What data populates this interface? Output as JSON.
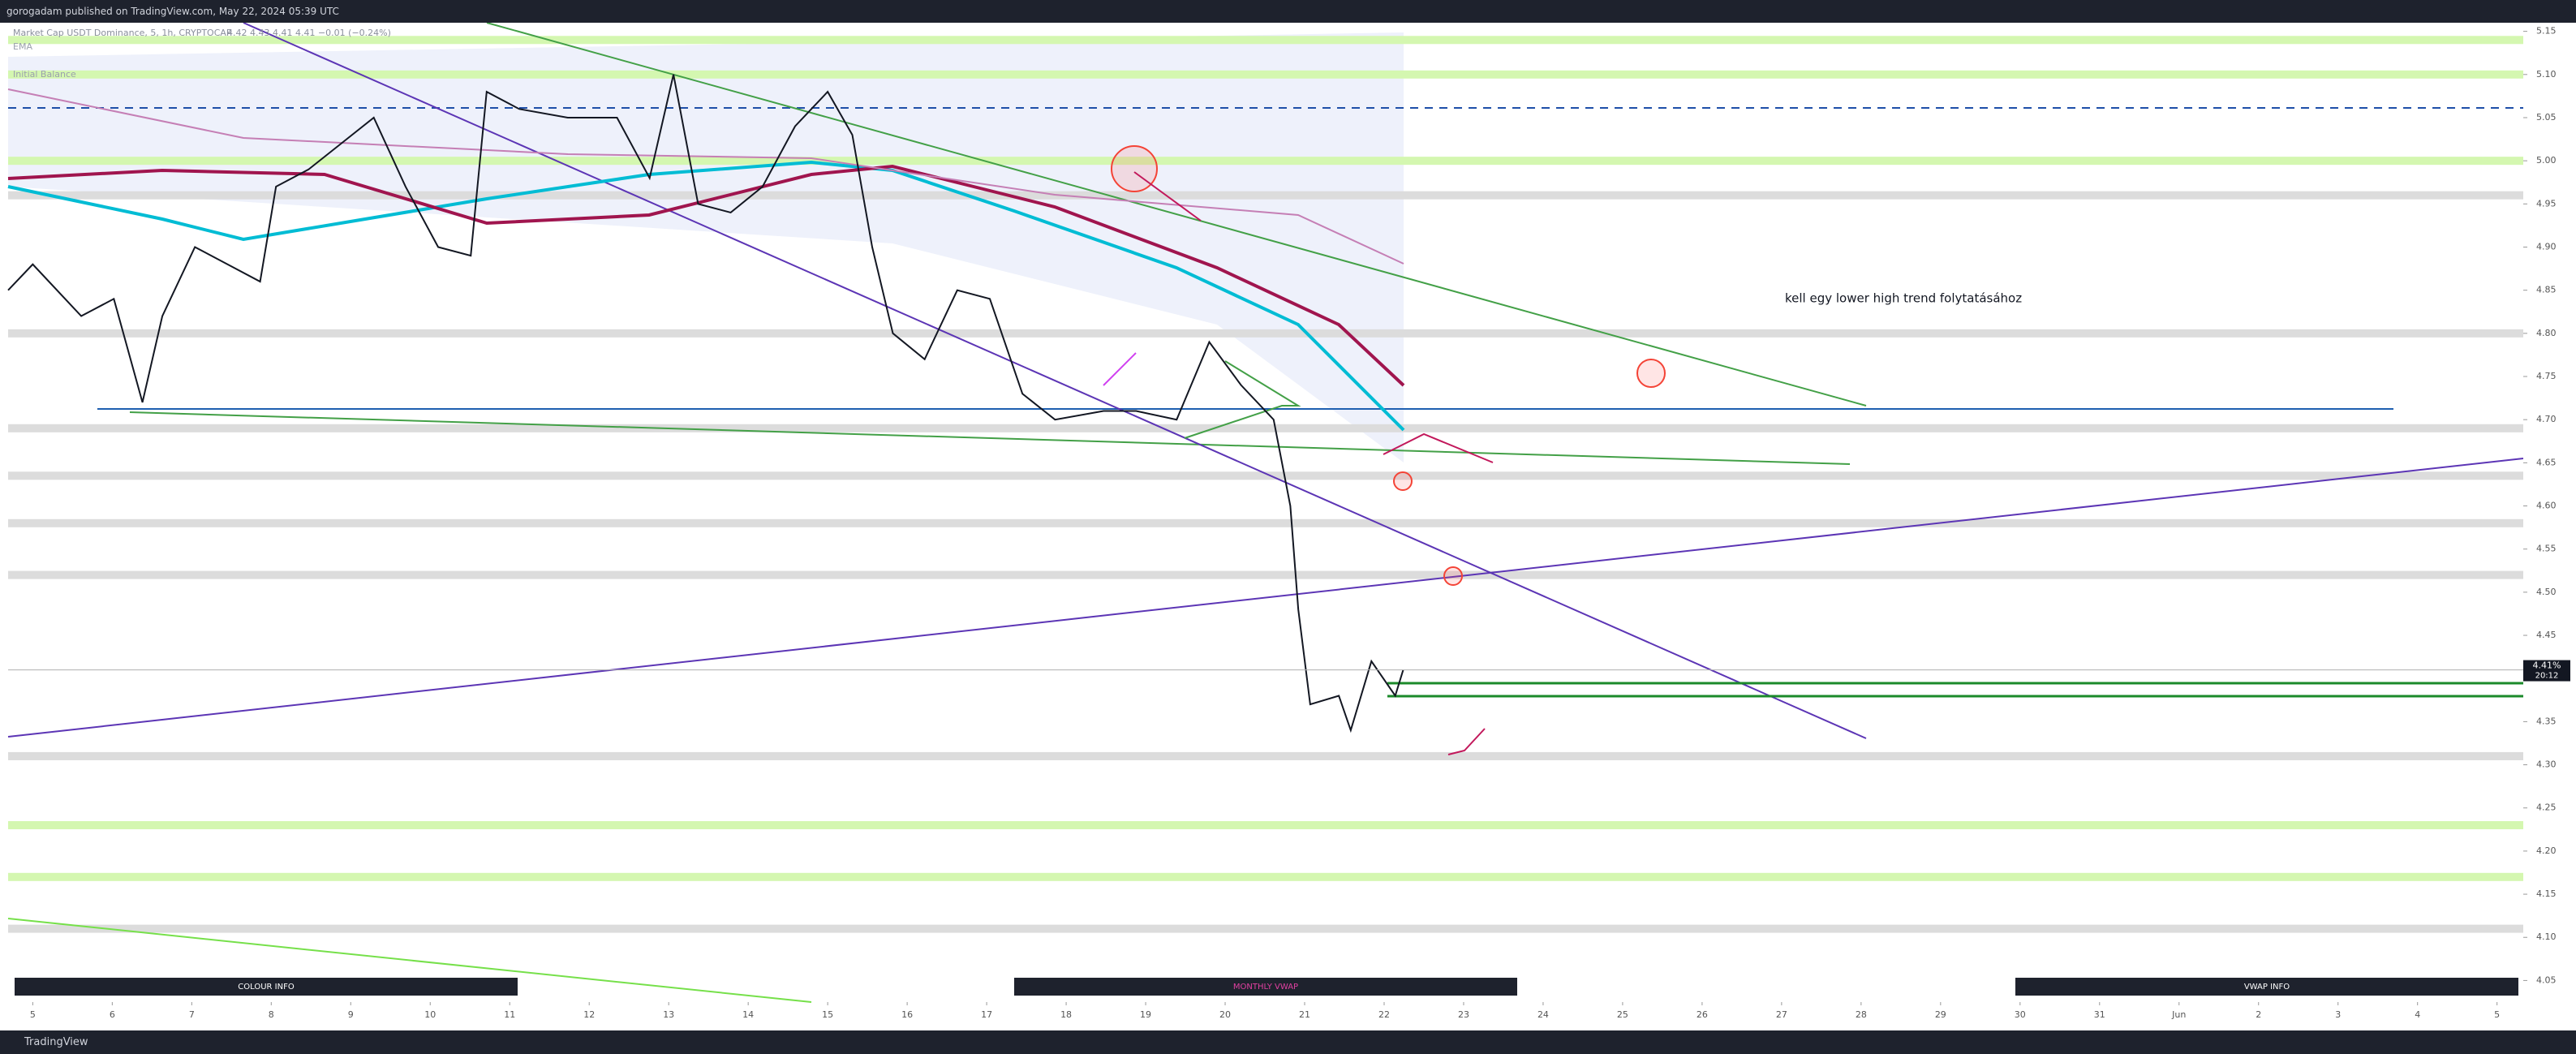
{
  "header": {
    "publisher": "gorogadam published on TradingView.com, May 22, 2024 05:39 UTC"
  },
  "footer": {
    "brand": "TradingView"
  },
  "chart_data": {
    "type": "line",
    "legend": {
      "symbol": "Market Cap USDT Dominance, 5, 1h, CRYPTOCAP",
      "ohlc": "4.42 4.43 4.41 4.41 −0.01 (−0.24%)",
      "indicators": [
        "EMA",
        "Initial Balance"
      ]
    },
    "annotation": "kell egy lower high trend folytatásához",
    "info_boxes": [
      "COLOUR INFO",
      "MONTHLY VWAP",
      "VWAP INFO"
    ],
    "x": [
      -0.31,
      0,
      0.61,
      1.02,
      1.38,
      1.63,
      2.04,
      2.45,
      2.86,
      3.06,
      3.47,
      3.88,
      4.29,
      4.69,
      5.1,
      5.51,
      5.71,
      6.12,
      6.73,
      7.35,
      7.76,
      8.06,
      8.37,
      8.78,
      9.18,
      9.59,
      10.0,
      10.31,
      10.56,
      10.82,
      11.22,
      11.63,
      12.04,
      12.45,
      12.86,
      13.47,
      13.88,
      14.39,
      14.8,
      15.2,
      15.61,
      15.82,
      15.92,
      16.07,
      16.43,
      16.58,
      16.84,
      17.14,
      17.24
    ],
    "series": [
      {
        "name": "Market Cap USDT Dominance",
        "color": "#131722",
        "values": [
          4.85,
          4.88,
          4.82,
          4.84,
          4.72,
          4.82,
          4.9,
          4.88,
          4.86,
          4.97,
          4.99,
          5.02,
          5.05,
          4.97,
          4.9,
          4.89,
          5.08,
          5.06,
          5.05,
          5.05,
          4.98,
          5.1,
          4.95,
          4.94,
          4.97,
          5.04,
          5.08,
          5.03,
          4.9,
          4.8,
          4.77,
          4.85,
          4.84,
          4.73,
          4.7,
          4.71,
          4.71,
          4.7,
          4.79,
          4.74,
          4.7,
          4.6,
          4.48,
          4.37,
          4.38,
          4.34,
          4.42,
          4.38,
          4.41
        ]
      }
    ],
    "last": {
      "value": 4.41,
      "label": "4.41%",
      "time": "20:12"
    },
    "levels": [
      {
        "value": 5.14,
        "color": "#d4f7b0"
      },
      {
        "value": 5.1,
        "color": "#d4f7b0"
      },
      {
        "value": 5.0,
        "color": "#d4f7b0"
      },
      {
        "value": 4.96,
        "color": "#dcdcdc"
      },
      {
        "value": 4.8,
        "color": "#dcdcdc"
      },
      {
        "value": 4.69,
        "color": "#dcdcdc"
      },
      {
        "value": 4.635,
        "color": "#dcdcdc"
      },
      {
        "value": 4.58,
        "color": "#dcdcdc"
      },
      {
        "value": 4.52,
        "color": "#dcdcdc"
      },
      {
        "value": 4.31,
        "color": "#dcdcdc"
      },
      {
        "value": 4.23,
        "color": "#d4f7b0"
      },
      {
        "value": 4.17,
        "color": "#d4f7b0"
      },
      {
        "value": 4.11,
        "color": "#dcdcdc"
      }
    ],
    "xlim": [
      -0.31,
      31.33
    ],
    "ylim": [
      4.025,
      5.16
    ],
    "xticks": [
      {
        "value": 0,
        "label": "5"
      },
      {
        "value": 1,
        "label": "6"
      },
      {
        "value": 2,
        "label": "7"
      },
      {
        "value": 3,
        "label": "8"
      },
      {
        "value": 4,
        "label": "9"
      },
      {
        "value": 5,
        "label": "10"
      },
      {
        "value": 6,
        "label": "11"
      },
      {
        "value": 7,
        "label": "12"
      },
      {
        "value": 8,
        "label": "13"
      },
      {
        "value": 9,
        "label": "14"
      },
      {
        "value": 10,
        "label": "15"
      },
      {
        "value": 11,
        "label": "16"
      },
      {
        "value": 12,
        "label": "17"
      },
      {
        "value": 13,
        "label": "18"
      },
      {
        "value": 14,
        "label": "19"
      },
      {
        "value": 15,
        "label": "20"
      },
      {
        "value": 16,
        "label": "21"
      },
      {
        "value": 17,
        "label": "22"
      },
      {
        "value": 18,
        "label": "23"
      },
      {
        "value": 19,
        "label": "24"
      },
      {
        "value": 20,
        "label": "25"
      },
      {
        "value": 21,
        "label": "26"
      },
      {
        "value": 22,
        "label": "27"
      },
      {
        "value": 23,
        "label": "28"
      },
      {
        "value": 24,
        "label": "29"
      },
      {
        "value": 25,
        "label": "30"
      },
      {
        "value": 26,
        "label": "31"
      },
      {
        "value": 27,
        "label": "Jun"
      },
      {
        "value": 28,
        "label": "2"
      },
      {
        "value": 29,
        "label": "3"
      },
      {
        "value": 30,
        "label": "4"
      },
      {
        "value": 31,
        "label": "5"
      }
    ],
    "yticks": [
      4.05,
      {
        "value": 4.1,
        "label": "4.10"
      },
      4.15,
      {
        "value": 4.2,
        "label": "4.20"
      },
      4.25,
      {
        "value": 4.3,
        "label": "4.30"
      },
      4.35,
      {
        "value": 4.4,
        "label": "4.40"
      },
      4.45,
      {
        "value": 4.5,
        "label": "4.50"
      },
      4.55,
      {
        "value": 4.6,
        "label": "4.60"
      },
      4.65,
      {
        "value": 4.7,
        "label": "4.70"
      },
      4.75,
      {
        "value": 4.8,
        "label": "4.80"
      },
      4.85,
      {
        "value": 4.9,
        "label": "4.90"
      },
      4.95,
      {
        "value": 5,
        "label": "5.00"
      },
      5.05,
      {
        "value": 5.1,
        "label": "5.10"
      },
      5.15
    ]
  }
}
